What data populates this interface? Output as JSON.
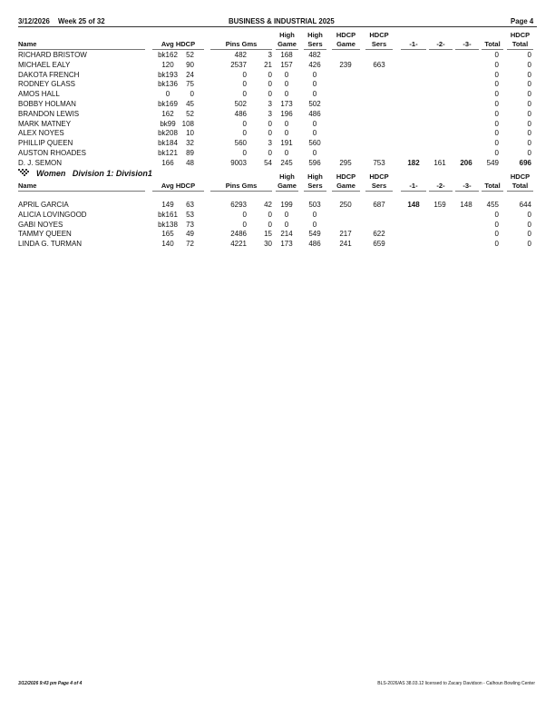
{
  "header": {
    "date": "3/12/2026",
    "week": "Week 25 of 32",
    "title": "BUSINESS & INDUSTRIAL 2025",
    "page": "Page 4"
  },
  "columns": {
    "name": "Name",
    "avg_hdcp": "Avg HDCP",
    "pins_gms": "Pins  Gms",
    "high_game": [
      "High",
      "Game"
    ],
    "high_sers": [
      "High",
      "Sers"
    ],
    "hdcp_game": [
      "HDCP",
      "Game"
    ],
    "hdcp_sers": [
      "HDCP",
      "Sers"
    ],
    "g1": "-1-",
    "g2": "-2-",
    "g3": "-3-",
    "total": "Total",
    "hdcp_total": [
      "HDCP",
      "Total"
    ]
  },
  "men": [
    [
      "RICHARD BRISTOW",
      "bk162",
      "52",
      "482",
      "3",
      "168",
      "482",
      "",
      "",
      "",
      "",
      "",
      "0",
      "0"
    ],
    [
      "MICHAEL EALY",
      "120",
      "90",
      "2537",
      "21",
      "157",
      "426",
      "239",
      "663",
      "",
      "",
      "",
      "0",
      "0"
    ],
    [
      "DAKOTA FRENCH",
      "bk193",
      "24",
      "0",
      "0",
      "0",
      "0",
      "",
      "",
      "",
      "",
      "",
      "0",
      "0"
    ],
    [
      "RODNEY GLASS",
      "bk136",
      "75",
      "0",
      "0",
      "0",
      "0",
      "",
      "",
      "",
      "",
      "",
      "0",
      "0"
    ],
    [
      "AMOS HALL",
      "0",
      "0",
      "0",
      "0",
      "0",
      "0",
      "",
      "",
      "",
      "",
      "",
      "0",
      "0"
    ],
    [
      "BOBBY HOLMAN",
      "bk169",
      "45",
      "502",
      "3",
      "173",
      "502",
      "",
      "",
      "",
      "",
      "",
      "0",
      "0"
    ],
    [
      "BRANDON LEWIS",
      "162",
      "52",
      "486",
      "3",
      "196",
      "486",
      "",
      "",
      "",
      "",
      "",
      "0",
      "0"
    ],
    [
      "MARK MATNEY",
      "bk99",
      "108",
      "0",
      "0",
      "0",
      "0",
      "",
      "",
      "",
      "",
      "",
      "0",
      "0"
    ],
    [
      "ALEX NOYES",
      "bk208",
      "10",
      "0",
      "0",
      "0",
      "0",
      "",
      "",
      "",
      "",
      "",
      "0",
      "0"
    ],
    [
      "PHILLIP QUEEN",
      "bk184",
      "32",
      "560",
      "3",
      "191",
      "560",
      "",
      "",
      "",
      "",
      "",
      "0",
      "0"
    ],
    [
      "AUSTON RHOADES",
      "bk121",
      "89",
      "0",
      "0",
      "0",
      "0",
      "",
      "",
      "",
      "",
      "",
      "0",
      "0"
    ],
    [
      "D. J. SEMON",
      "166",
      "48",
      "9003",
      "54",
      "245",
      "596",
      "295",
      "753",
      "182",
      "161",
      "206",
      "549",
      "696"
    ]
  ],
  "men_bold": [
    [
      11,
      9
    ],
    [
      11,
      11
    ],
    [
      11,
      13
    ]
  ],
  "section": {
    "icon": "checkered-flag-icon",
    "label": "Women   Division 1: Division1"
  },
  "women": [
    [
      "APRIL GARCIA",
      "149",
      "63",
      "6293",
      "42",
      "199",
      "503",
      "250",
      "687",
      "148",
      "159",
      "148",
      "455",
      "644"
    ],
    [
      "ALICIA LOVINGOOD",
      "bk161",
      "53",
      "0",
      "0",
      "0",
      "0",
      "",
      "",
      "",
      "",
      "",
      "0",
      "0"
    ],
    [
      "GABI NOYES",
      "bk138",
      "73",
      "0",
      "0",
      "0",
      "0",
      "",
      "",
      "",
      "",
      "",
      "0",
      "0"
    ],
    [
      "TAMMY QUEEN",
      "165",
      "49",
      "2486",
      "15",
      "214",
      "549",
      "217",
      "622",
      "",
      "",
      "",
      "0",
      "0"
    ],
    [
      "LINDA G. TURMAN",
      "140",
      "72",
      "4221",
      "30",
      "173",
      "486",
      "241",
      "659",
      "",
      "",
      "",
      "0",
      "0"
    ]
  ],
  "women_bold": [
    [
      0,
      9
    ]
  ],
  "footer": {
    "left": "3/12/2026  9:43 pm  Page 4 of 4",
    "right": "BLS-2026/AS 38.03.12 licensed to Zacary Davidson - Calhoun Bowling Center"
  }
}
